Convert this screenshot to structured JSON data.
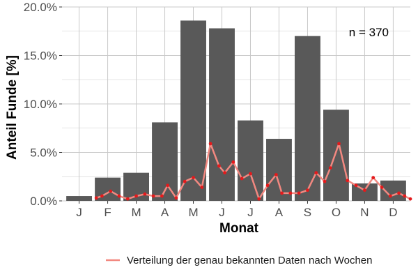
{
  "chart_data": {
    "type": "bar",
    "categories": [
      "J",
      "F",
      "M",
      "A",
      "M",
      "J",
      "J",
      "A",
      "S",
      "O",
      "N",
      "D"
    ],
    "series": [
      {
        "type": "bar",
        "values": [
          0.5,
          2.4,
          2.9,
          8.1,
          18.6,
          17.8,
          8.3,
          6.4,
          17.0,
          9.4,
          1.8,
          2.1
        ]
      },
      {
        "type": "line",
        "name": "Verteilung der genau bekannten Daten nach Wochen",
        "x": [
          1.6,
          1.8,
          2.1,
          2.4,
          2.7,
          3.0,
          3.3,
          3.6,
          3.9,
          4.1,
          4.4,
          4.7,
          5.0,
          5.3,
          5.6,
          5.9,
          6.1,
          6.4,
          6.7,
          7.0,
          7.3,
          7.6,
          7.9,
          8.1,
          8.4,
          8.7,
          9.0,
          9.3,
          9.6,
          9.8,
          10.1,
          10.4,
          10.7,
          11.0,
          11.3,
          11.6,
          11.9,
          12.2,
          12.4,
          12.6
        ],
        "values": [
          0.3,
          0.5,
          1.0,
          0.5,
          0.2,
          0.5,
          0.7,
          0.5,
          0.5,
          1.6,
          0.3,
          2.0,
          2.4,
          1.4,
          5.9,
          3.6,
          2.9,
          4.0,
          2.3,
          2.8,
          0.2,
          1.6,
          2.7,
          0.8,
          0.8,
          0.8,
          1.1,
          2.9,
          2.0,
          3.4,
          5.9,
          2.1,
          1.6,
          1.1,
          2.4,
          1.4,
          0.5,
          0.8,
          0.5,
          0.2
        ]
      }
    ],
    "ylim": [
      0,
      20
    ],
    "yticks": [
      0,
      5,
      10,
      15,
      20
    ],
    "ytick_labels": [
      "0.0%",
      "5.0%",
      "10.0%",
      "15.0%",
      "20.0%"
    ],
    "xlabel": "Monat",
    "ylabel": "Anteil Funde [%]",
    "annotation": "n = 370",
    "grid": true,
    "legend_position": "bottom",
    "colors": {
      "bar": "#595959",
      "line": "#f28880",
      "point": "#e41a1c",
      "grid": "#c8c8c8"
    }
  }
}
